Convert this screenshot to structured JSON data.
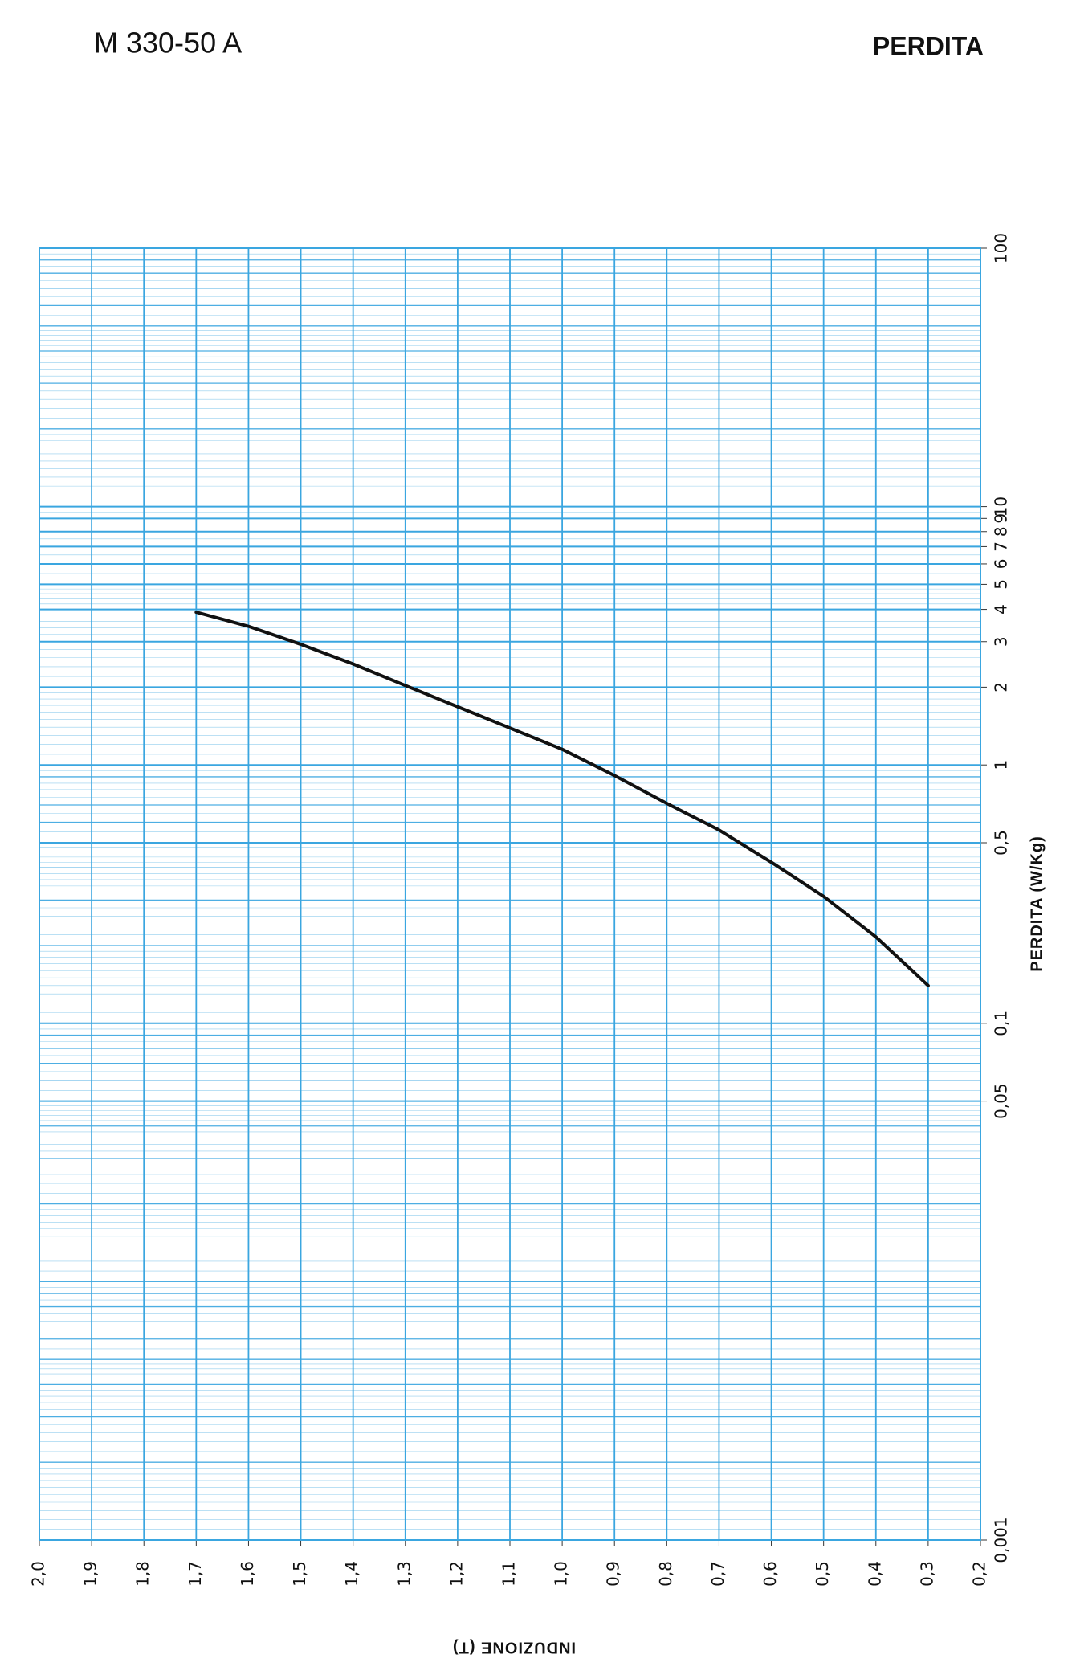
{
  "chart_data": {
    "type": "line",
    "title": "M 330-50 A",
    "subtitle": "PERDITA",
    "x_label": "INDUZIONE (T)",
    "y_label": "PERDITA (W/Kg)",
    "x": [
      1.7,
      1.6,
      1.5,
      1.4,
      1.3,
      1.2,
      1.1,
      1.0,
      0.9,
      0.8,
      0.7,
      0.6,
      0.5,
      0.4,
      0.3
    ],
    "series": [
      {
        "name": "M 330-50 A",
        "color": "#111111",
        "values": [
          3.9,
          3.44,
          2.93,
          2.46,
          2.03,
          1.68,
          1.39,
          1.15,
          0.91,
          0.71,
          0.56,
          0.42,
          0.31,
          0.216,
          0.14
        ]
      }
    ],
    "xlim": [
      2.0,
      0.2
    ],
    "xticks": [
      {
        "value": 2.0,
        "label": "2,0"
      },
      {
        "value": 1.9,
        "label": "1,9"
      },
      {
        "value": 1.8,
        "label": "1,8"
      },
      {
        "value": 1.7,
        "label": "1,7"
      },
      {
        "value": 1.6,
        "label": "1,6"
      },
      {
        "value": 1.5,
        "label": "1,5"
      },
      {
        "value": 1.4,
        "label": "1,4"
      },
      {
        "value": 1.3,
        "label": "1,3"
      },
      {
        "value": 1.2,
        "label": "1,2"
      },
      {
        "value": 1.1,
        "label": "1,1"
      },
      {
        "value": 1.0,
        "label": "1,0"
      },
      {
        "value": 0.9,
        "label": "0,9"
      },
      {
        "value": 0.8,
        "label": "0,8"
      },
      {
        "value": 0.7,
        "label": "0,7"
      },
      {
        "value": 0.6,
        "label": "0,6"
      },
      {
        "value": 0.5,
        "label": "0,5"
      },
      {
        "value": 0.4,
        "label": "0,4"
      },
      {
        "value": 0.3,
        "label": "0,3"
      },
      {
        "value": 0.2,
        "label": "0,2"
      }
    ],
    "ylim": [
      0.001,
      100
    ],
    "yscale": "log",
    "yticks": [
      {
        "value": 0.001,
        "label": "0,001"
      },
      {
        "value": 0.05,
        "label": "0,05"
      },
      {
        "value": 0.1,
        "label": "0,1"
      },
      {
        "value": 0.5,
        "label": "0,5"
      },
      1,
      2,
      3,
      4,
      5,
      6,
      7,
      8,
      9,
      10,
      100
    ],
    "grid": true,
    "grid_color": "#3aa6e0"
  }
}
